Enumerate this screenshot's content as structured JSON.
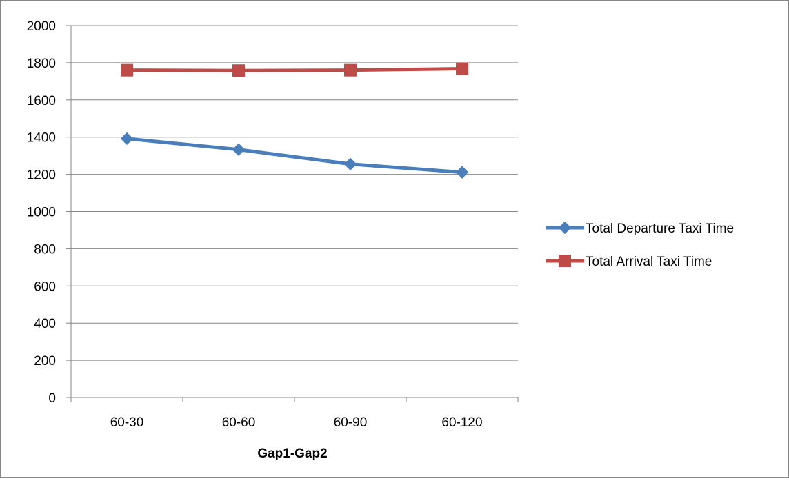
{
  "chart_data": {
    "type": "line",
    "title": "",
    "xlabel": "Gap1-Gap2",
    "ylabel": "",
    "categories": [
      "60-30",
      "60-60",
      "60-90",
      "60-120"
    ],
    "ylim": [
      0,
      2000
    ],
    "yticks": [
      0,
      200,
      400,
      600,
      800,
      1000,
      1200,
      1400,
      1600,
      1800,
      2000
    ],
    "grid": true,
    "legend_position": "right",
    "series": [
      {
        "name": "Total Departure Taxi Time",
        "values": [
          1392,
          1333,
          1255,
          1211
        ],
        "color": "#4a7ebb",
        "marker": "diamond"
      },
      {
        "name": "Total Arrival Taxi Time",
        "values": [
          1760,
          1758,
          1760,
          1768
        ],
        "color": "#be4b48",
        "marker": "square"
      }
    ]
  }
}
